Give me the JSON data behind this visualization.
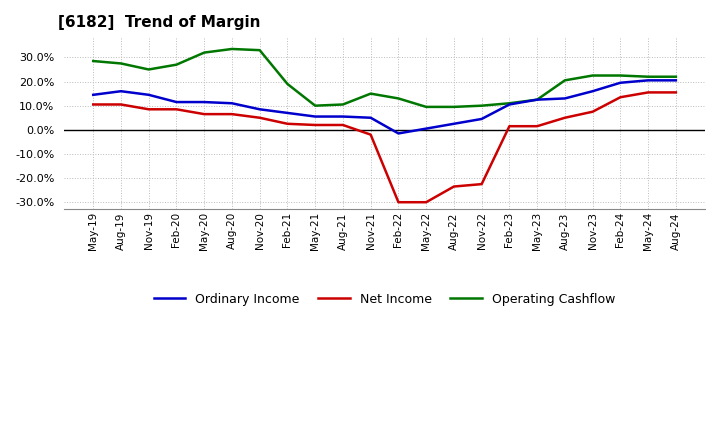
{
  "title": "[6182]  Trend of Margin",
  "x_labels": [
    "May-19",
    "Aug-19",
    "Nov-19",
    "Feb-20",
    "May-20",
    "Aug-20",
    "Nov-20",
    "Feb-21",
    "May-21",
    "Aug-21",
    "Nov-21",
    "Feb-22",
    "May-22",
    "Aug-22",
    "Nov-22",
    "Feb-23",
    "May-23",
    "Aug-23",
    "Nov-23",
    "Feb-24",
    "May-24",
    "Aug-24"
  ],
  "ordinary_income": [
    14.5,
    16.0,
    14.5,
    11.5,
    11.5,
    11.0,
    8.5,
    7.0,
    5.5,
    5.5,
    5.0,
    -1.5,
    0.5,
    2.5,
    4.5,
    10.5,
    12.5,
    13.0,
    16.0,
    19.5,
    20.5,
    20.5
  ],
  "net_income": [
    10.5,
    10.5,
    8.5,
    8.5,
    6.5,
    6.5,
    5.0,
    2.5,
    2.0,
    2.0,
    -2.0,
    -30.0,
    -30.0,
    -23.5,
    -22.5,
    1.5,
    1.5,
    5.0,
    7.5,
    13.5,
    15.5,
    15.5
  ],
  "operating_cashflow": [
    28.5,
    27.5,
    25.0,
    27.0,
    32.0,
    33.5,
    33.0,
    19.0,
    10.0,
    10.5,
    15.0,
    13.0,
    9.5,
    9.5,
    10.0,
    11.0,
    12.5,
    20.5,
    22.5,
    22.5,
    22.0,
    22.0
  ],
  "ylim": [
    -33,
    38
  ],
  "yticks": [
    -30,
    -20,
    -10,
    0,
    10,
    20,
    30
  ],
  "colors": {
    "ordinary_income": "#0000cc",
    "net_income": "#cc0000",
    "operating_cashflow": "#007700"
  },
  "background_color": "#ffffff",
  "plot_background": "#ffffff",
  "grid_color": "#bbbbbb",
  "line_width": 1.8
}
